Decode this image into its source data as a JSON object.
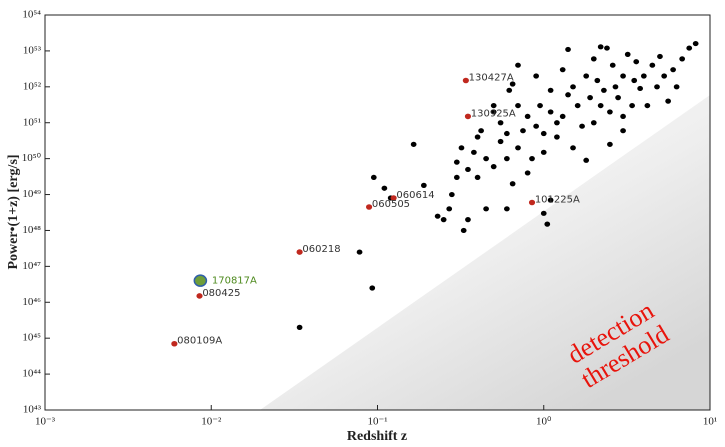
{
  "chart_data": {
    "type": "scatter",
    "xlabel": "Redshift z",
    "ylabel": "Power•(1+z) [erg/s]",
    "log_x": true,
    "log_y": true,
    "xlim": [
      0.001,
      10
    ],
    "ylim": [
      1e+43,
      1e+54
    ],
    "xticks": [
      {
        "value": 0.001,
        "label": "10⁻³"
      },
      {
        "value": 0.01,
        "label": "10⁻²"
      },
      {
        "value": 0.1,
        "label": "10⁻¹"
      },
      {
        "value": 1,
        "label": "10⁰"
      },
      {
        "value": 10,
        "label": "10¹"
      }
    ],
    "yticks": [
      {
        "value": 1e+43,
        "label": "10⁴³"
      },
      {
        "value": 1e+44,
        "label": "10⁴⁴"
      },
      {
        "value": 1e+45,
        "label": "10⁴⁵"
      },
      {
        "value": 1e+46,
        "label": "10⁴⁶"
      },
      {
        "value": 1e+47,
        "label": "10⁴⁷"
      },
      {
        "value": 1e+48,
        "label": "10⁴⁸"
      },
      {
        "value": 1e+49,
        "label": "10⁴⁹"
      },
      {
        "value": 1e+50,
        "label": "10⁵⁰"
      },
      {
        "value": 1e+51,
        "label": "10⁵¹"
      },
      {
        "value": 1e+52,
        "label": "10⁵²"
      },
      {
        "value": 1e+53,
        "label": "10⁵³"
      },
      {
        "value": 1e+54,
        "label": "10⁵⁴"
      }
    ],
    "annotation_lines": [
      "detection",
      "threshold"
    ],
    "annotation_color": "#e8140c",
    "series": [
      {
        "color": "#000000",
        "size": 2.6,
        "x": [
          0.25,
          0.27,
          0.28,
          0.3,
          0.3,
          0.32,
          0.33,
          0.35,
          0.38,
          0.4,
          0.42,
          0.45,
          0.45,
          0.5,
          0.5,
          0.55,
          0.55,
          0.6,
          0.6,
          0.62,
          0.65,
          0.7,
          0.7,
          0.75,
          0.8,
          0.8,
          0.85,
          0.9,
          0.9,
          0.95,
          1.0,
          1.0,
          1.05,
          1.1,
          1.1,
          1.2,
          1.2,
          1.3,
          1.3,
          1.4,
          1.5,
          1.5,
          1.6,
          1.7,
          1.8,
          1.9,
          2.0,
          2.0,
          2.1,
          2.2,
          2.3,
          2.4,
          2.5,
          2.6,
          2.7,
          2.8,
          3.0,
          3.0,
          3.2,
          3.4,
          3.5,
          3.6,
          3.8,
          4.0,
          4.2,
          4.5,
          4.8,
          5.0,
          5.3,
          5.6,
          6.0,
          6.3,
          6.8,
          7.5,
          8.2,
          2.2,
          1.4,
          0.7,
          0.65,
          0.5,
          1.0,
          0.6,
          0.35,
          1.1,
          2.5,
          1.8,
          0.4,
          0.23,
          3.0,
          0.034,
          0.093,
          0.078,
          0.095,
          0.11,
          0.165,
          0.19,
          0.12
        ],
        "y": [
          2e+48,
          4e+48,
          1e+49,
          3e+49,
          8e+49,
          2e+50,
          1e+48,
          5e+49,
          1.5e+50,
          3e+49,
          6e+50,
          1e+50,
          4e+48,
          2e+51,
          6e+49,
          3e+50,
          1e+51,
          1e+50,
          5e+50,
          8e+51,
          2e+49,
          3e+51,
          2e+50,
          6e+50,
          1.5e+51,
          4e+49,
          1e+50,
          2e+52,
          8e+50,
          3e+51,
          5e+50,
          1.5e+50,
          1.5e+48,
          2e+51,
          8e+51,
          1e+51,
          4e+50,
          3e+52,
          1.5e+51,
          6e+51,
          2e+50,
          1e+52,
          3e+51,
          8e+50,
          2e+52,
          5e+51,
          1e+51,
          6e+52,
          1.5e+52,
          3e+51,
          8e+51,
          1.2e+53,
          2e+51,
          4e+52,
          1e+52,
          5e+51,
          2e+52,
          6e+50,
          8e+52,
          3e+51,
          1.5e+52,
          5e+52,
          9e+51,
          2e+52,
          3e+51,
          4e+52,
          1e+52,
          7e+52,
          2e+52,
          4e+51,
          3e+52,
          1e+52,
          6e+52,
          1.2e+53,
          1.6e+53,
          1.3e+53,
          1.1e+53,
          4e+52,
          1.2e+52,
          3e+51,
          3e+48,
          4e+48,
          2e+48,
          7e+48,
          2.5e+50,
          9e+49,
          4e+50,
          2.5e+48,
          1.5e+51,
          2e+45,
          2.5e+46,
          2.5e+47,
          3e+49,
          1.5e+49,
          2.5e+50,
          1.8e+49,
          8e+48
        ]
      },
      {
        "color": "#c0281e",
        "size": 2.8,
        "label_color": "#333333",
        "x": [
          0.34,
          0.35,
          0.125,
          0.089,
          0.85,
          0.034,
          0.0085,
          0.006
        ],
        "y": [
          1.5e+52,
          1.5e+51,
          8e+48,
          4.5e+48,
          6e+48,
          2.5e+47,
          1.5e+46,
          7e+44
        ],
        "labels": [
          "130427A",
          "130925A",
          "060614",
          "060505",
          "101225A",
          "060218",
          "080425",
          "080109A"
        ]
      },
      {
        "color": "#6f9e3a",
        "edgecolor": "#2f5fa8",
        "size": 5.5,
        "label_color": "#4e8a1e",
        "x": [
          0.0086
        ],
        "y": [
          4e+46
        ],
        "labels": [
          "170817A"
        ]
      }
    ]
  }
}
